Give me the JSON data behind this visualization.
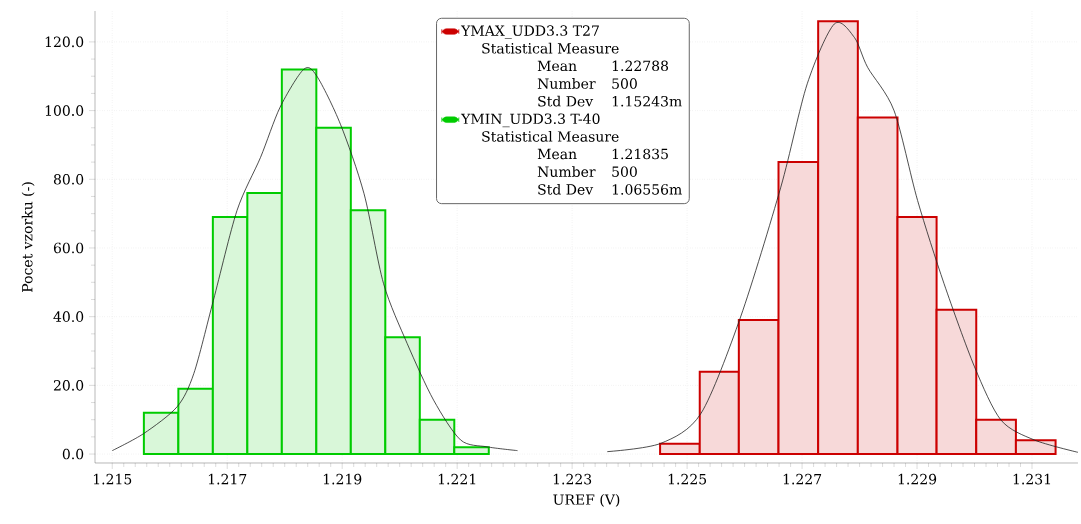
{
  "chart_data": {
    "type": "histogram",
    "xlabel": "UREF (V)",
    "ylabel": "Pocet vzorku (-)",
    "xlim": [
      1.2147,
      1.2318
    ],
    "ylim": [
      -2.6,
      129
    ],
    "xticks": [
      1.215,
      1.217,
      1.219,
      1.221,
      1.223,
      1.225,
      1.227,
      1.229,
      1.231
    ],
    "yticks": [
      {
        "value": 0,
        "label": "0.0"
      },
      {
        "value": 20,
        "label": "20.0"
      },
      {
        "value": 40,
        "label": "40.0"
      },
      {
        "value": 60,
        "label": "60.0"
      },
      {
        "value": 80,
        "label": "80.0"
      },
      {
        "value": 100,
        "label": "100.0"
      },
      {
        "value": 120,
        "label": "120.0"
      }
    ],
    "grid": true,
    "legend": "top",
    "series": [
      {
        "name": "YMAX_UDD3.3 T27",
        "color": "#cc0000",
        "bins": [
          1.22453,
          1.22522,
          1.2259,
          1.22659,
          1.22728,
          1.22797,
          1.22866,
          1.22934,
          1.23003,
          1.23072,
          1.23141
        ],
        "values": [
          3,
          24,
          39,
          85,
          126,
          98,
          69,
          42,
          10,
          4
        ]
      },
      {
        "name": "YMIN_UDD3.3 T-40",
        "color": "#00cc00",
        "bins": [
          1.21555,
          1.21615,
          1.21675,
          1.21735,
          1.21795,
          1.21855,
          1.21915,
          1.21975,
          1.22035,
          1.22095,
          1.22155
        ],
        "values": [
          12,
          19,
          69,
          76,
          112,
          95,
          71,
          34,
          10,
          2
        ]
      },
      {
        "type": "line",
        "color": "#222222",
        "x": [
          1.215,
          1.21555,
          1.21613,
          1.21642,
          1.21676,
          1.21717,
          1.21758,
          1.21792,
          1.21833,
          1.21856,
          1.21897,
          1.21938,
          1.21972,
          1.22013,
          1.22059,
          1.22106,
          1.22152,
          1.22205
        ],
        "values": [
          1.0,
          6.0,
          13.8,
          23.5,
          44.8,
          70.9,
          86.4,
          101,
          112,
          110,
          96,
          75.8,
          49.6,
          32.2,
          15.7,
          4.1,
          2.1,
          1.0
        ]
      },
      {
        "type": "line",
        "color": "#222222",
        "x": [
          1.22361,
          1.22454,
          1.22524,
          1.22593,
          1.22663,
          1.22709,
          1.22756,
          1.22791,
          1.22814,
          1.2286,
          1.22901,
          1.22947,
          1.23,
          1.23046,
          1.23104,
          1.2318
        ],
        "values": [
          0.7,
          3.1,
          11.8,
          39.9,
          77.7,
          107.8,
          125.2,
          121.3,
          112.6,
          100,
          73.8,
          49.6,
          25.4,
          9.9,
          4.1,
          0.5
        ]
      }
    ],
    "annotations": [
      "Statistical Measure",
      "Mean",
      "1.22788",
      "Number",
      "500",
      "Std Dev",
      "1.15243m",
      "Statistical Measure",
      "Mean",
      "1.21835",
      "Number",
      "500",
      "Std Dev",
      "1.06556m"
    ]
  }
}
